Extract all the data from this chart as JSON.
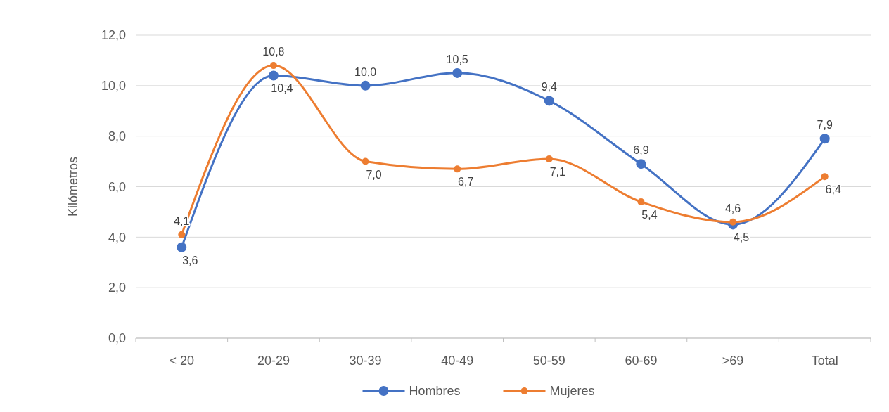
{
  "chart_data": {
    "type": "line",
    "ylabel": "Kilómetros",
    "categories": [
      "< 20",
      "20-29",
      "30-39",
      "40-49",
      "50-59",
      "60-69",
      ">69",
      "Total"
    ],
    "series": [
      {
        "name": "Hombres",
        "color": "#4472c4",
        "values": [
          3.6,
          10.4,
          10.0,
          10.5,
          9.4,
          6.9,
          4.5,
          7.9
        ],
        "value_labels": [
          "3,6",
          "10,4",
          "10,0",
          "10,5",
          "9,4",
          "6,9",
          "4,5",
          "7,9"
        ]
      },
      {
        "name": "Mujeres",
        "color": "#ed7d31",
        "values": [
          4.1,
          10.8,
          7.0,
          6.7,
          7.1,
          5.4,
          4.6,
          6.4
        ],
        "value_labels": [
          "4,1",
          "10,8",
          "7,0",
          "6,7",
          "7,1",
          "5,4",
          "4,6",
          "6,4"
        ]
      }
    ],
    "ylim": [
      0,
      12
    ],
    "yticks": [
      {
        "value": 0,
        "label": "0,0"
      },
      {
        "value": 2,
        "label": "2,0"
      },
      {
        "value": 4,
        "label": "4,0"
      },
      {
        "value": 6,
        "label": "6,0"
      },
      {
        "value": 8,
        "label": "8,0"
      },
      {
        "value": 10,
        "label": "10,0"
      },
      {
        "value": 12,
        "label": "12,0"
      }
    ],
    "grid": "y",
    "legend": "bottom",
    "marker": "circle",
    "line_style": "solid"
  }
}
